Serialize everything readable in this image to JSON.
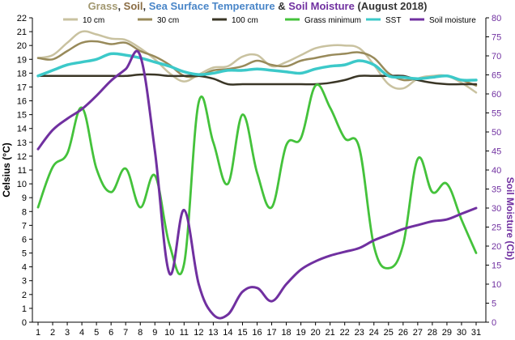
{
  "chart_data": {
    "type": "line",
    "title": {
      "parts": [
        {
          "text": "Grass",
          "color": "#a29870"
        },
        {
          "text": ", ",
          "color": "#333333"
        },
        {
          "text": "Soil",
          "color": "#8b6d44"
        },
        {
          "text": ", ",
          "color": "#333333"
        },
        {
          "text": "Sea Surface Temperature",
          "color": "#4a86c8"
        },
        {
          "text": " & ",
          "color": "#333333"
        },
        {
          "text": "Soil Moisture",
          "color": "#7030a0"
        },
        {
          "text": " (August 2018)",
          "color": "#333333"
        }
      ]
    },
    "xlabel": "",
    "ylabel": "Celsius (°C)",
    "ylabel_color": "#000000",
    "y2label": "Soil Moisture (Cb)",
    "y2label_color": "#7030a0",
    "x": [
      1,
      2,
      3,
      4,
      5,
      6,
      7,
      8,
      9,
      10,
      11,
      12,
      13,
      14,
      15,
      16,
      17,
      18,
      19,
      20,
      21,
      22,
      23,
      24,
      25,
      26,
      27,
      28,
      29,
      30,
      31
    ],
    "ylim": [
      0,
      22
    ],
    "y2lim": [
      0,
      80
    ],
    "yticks": [
      0,
      1,
      2,
      3,
      4,
      5,
      6,
      7,
      8,
      9,
      10,
      11,
      12,
      13,
      14,
      15,
      16,
      17,
      18,
      19,
      20,
      21,
      22
    ],
    "y2ticks": [
      0,
      5,
      10,
      15,
      20,
      25,
      30,
      35,
      40,
      45,
      50,
      55,
      60,
      65,
      70,
      75,
      80
    ],
    "grid": false,
    "legend_position": "top",
    "series": [
      {
        "name": "10 cm",
        "axis": "left",
        "color": "#c9c2a0",
        "values": [
          19.1,
          19.3,
          20.2,
          21.0,
          20.8,
          20.5,
          20.4,
          19.8,
          19.0,
          18.0,
          17.4,
          17.9,
          18.4,
          18.5,
          19.2,
          19.3,
          18.5,
          18.8,
          19.3,
          19.8,
          20.0,
          20.0,
          19.8,
          18.6,
          17.2,
          16.9,
          17.6,
          17.8,
          17.8,
          17.3,
          16.6
        ]
      },
      {
        "name": "30 cm",
        "axis": "left",
        "color": "#988a5a",
        "values": [
          19.1,
          19.0,
          19.6,
          20.2,
          20.3,
          20.1,
          20.2,
          19.6,
          19.2,
          18.6,
          17.8,
          17.8,
          18.2,
          18.3,
          18.5,
          18.9,
          18.6,
          18.5,
          18.9,
          19.1,
          19.3,
          19.4,
          19.5,
          19.1,
          18.0,
          17.5,
          17.6,
          17.7,
          17.8,
          17.5,
          17.1
        ]
      },
      {
        "name": "100 cm",
        "axis": "left",
        "color": "#3a3626",
        "values": [
          17.8,
          17.8,
          17.8,
          17.8,
          17.8,
          17.8,
          17.8,
          17.9,
          17.9,
          17.8,
          17.8,
          17.8,
          17.6,
          17.2,
          17.2,
          17.2,
          17.2,
          17.2,
          17.2,
          17.2,
          17.3,
          17.5,
          17.8,
          17.8,
          17.8,
          17.8,
          17.5,
          17.3,
          17.2,
          17.2,
          17.2
        ]
      },
      {
        "name": "Grass minimum",
        "axis": "left",
        "color": "#44c23b",
        "values": [
          8.3,
          11.2,
          12.2,
          15.5,
          11.1,
          9.4,
          11.1,
          8.3,
          10.6,
          5.6,
          4.2,
          15.9,
          13.0,
          10.0,
          15.0,
          10.8,
          8.3,
          12.8,
          13.3,
          17.1,
          15.5,
          13.3,
          12.6,
          5.5,
          3.9,
          5.6,
          11.8,
          9.4,
          10.0,
          7.4,
          5.0
        ]
      },
      {
        "name": "SST",
        "axis": "left",
        "color": "#3cc9c9",
        "values": [
          17.8,
          18.2,
          18.6,
          18.8,
          19.0,
          19.4,
          19.3,
          19.1,
          18.8,
          18.5,
          18.1,
          17.9,
          18.0,
          18.2,
          18.2,
          18.3,
          18.2,
          18.1,
          18.0,
          18.3,
          18.5,
          18.6,
          18.9,
          18.6,
          17.8,
          17.7,
          17.6,
          17.7,
          17.8,
          17.5,
          17.5
        ]
      },
      {
        "name": "Soil moisture",
        "axis": "right",
        "color": "#7030a0",
        "values": [
          45.5,
          50.5,
          53.5,
          56.0,
          59.5,
          63.5,
          66.5,
          70.0,
          45.0,
          12.8,
          29.5,
          10.0,
          2.0,
          2.0,
          8.0,
          9.0,
          5.5,
          10.0,
          13.8,
          16.0,
          17.5,
          18.5,
          19.5,
          21.5,
          23.0,
          24.5,
          25.5,
          26.5,
          27.0,
          28.5,
          30.0
        ]
      }
    ]
  }
}
